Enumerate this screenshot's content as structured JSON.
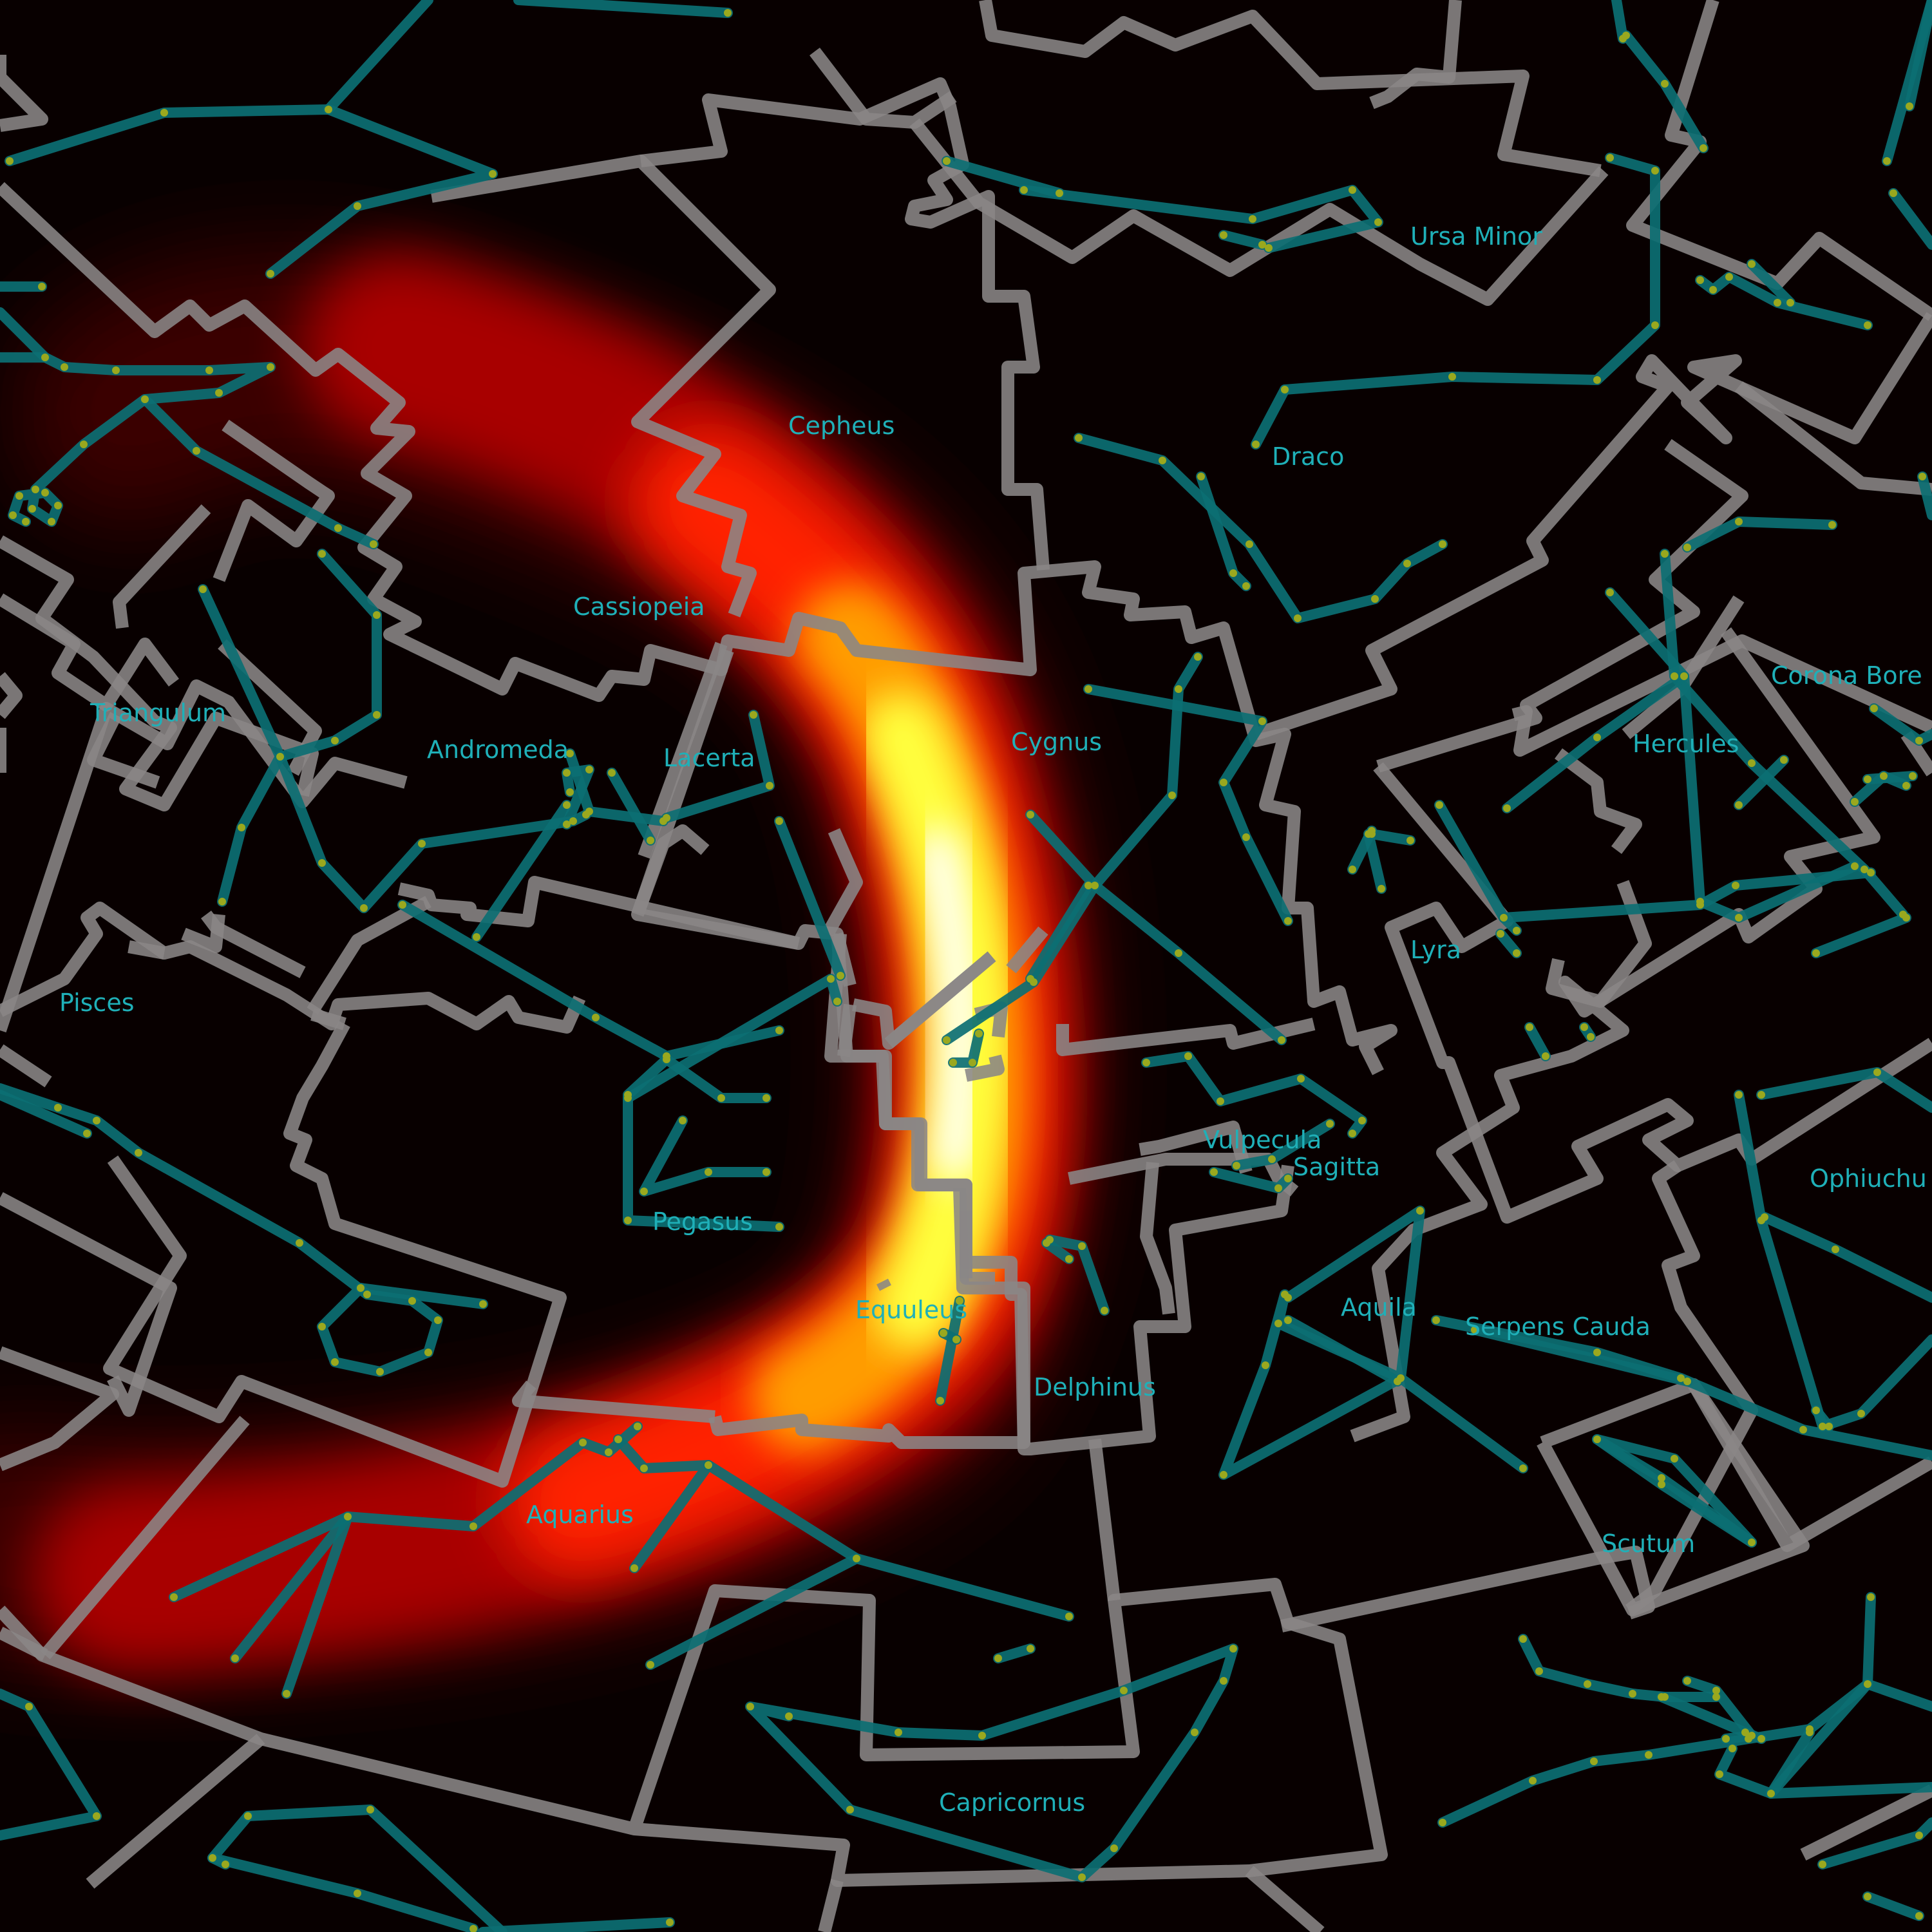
{
  "constellation_labels": [
    "Ursa Minor",
    "Cepheus",
    "Draco",
    "Cassiopeia",
    "Corona Bore",
    "Cygnus",
    "Hercules",
    "Triangulum",
    "Andromeda",
    "Lacerta",
    "Lyra",
    "Pisces",
    "Vulpecula",
    "Sagitta",
    "Ophiuchu",
    "Pegasus",
    "Aquila",
    "Equuleus",
    "Serpens Cauda",
    "Delphinus",
    "Aquarius",
    "Scutum",
    "Capricornus"
  ],
  "colors": {
    "background": "#080000",
    "boundary_lines": "#8a8686",
    "constellation_lines": "#0c6f73",
    "stars": "#9aa81e",
    "labels": "#1fb0b8",
    "heatmap": [
      "#5a0000",
      "#c40000",
      "#ff2000",
      "#ff9a00",
      "#ffff40",
      "#ffffff"
    ]
  }
}
